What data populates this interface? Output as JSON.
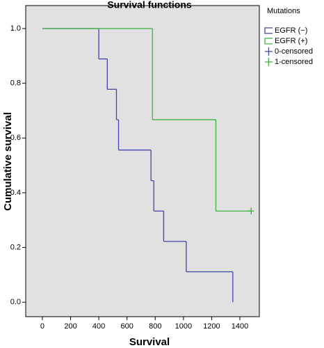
{
  "chart_data": {
    "type": "step",
    "title": "Survival functions",
    "xlabel": "Survival",
    "ylabel": "Cumulative survival",
    "legend_title": "Mutations",
    "legend": "outside-right-top",
    "xlim": [
      -118,
      1538
    ],
    "xticks": [
      0,
      200,
      400,
      600,
      800,
      1000,
      1200,
      1400
    ],
    "ylim": [
      -0.053,
      1.084
    ],
    "yticks": [
      {
        "value": 0,
        "label": "0.0"
      },
      0.2,
      0.4,
      0.6,
      0.8,
      {
        "value": 1,
        "label": "1.0"
      }
    ],
    "series": [
      {
        "name": "EGFR (−)",
        "color": "#4444a8",
        "x": [
          0,
          400,
          460,
          525,
          540,
          770,
          790,
          860,
          1020,
          1350
        ],
        "values": [
          1,
          0.889,
          0.778,
          0.667,
          0.556,
          0.444,
          0.333,
          0.222,
          0.111,
          0
        ]
      },
      {
        "name": "EGFR (+)",
        "color": "#3db13d",
        "x": [
          0,
          780,
          1230
        ],
        "values": [
          1,
          0.667,
          0.333
        ],
        "censored": {
          "x": [
            1480
          ],
          "values": [
            0.333
          ]
        }
      }
    ],
    "censor_legend": [
      {
        "name": "0-censored",
        "color": "#4444a8"
      },
      {
        "name": "1-censored",
        "color": "#3db13d"
      }
    ]
  }
}
